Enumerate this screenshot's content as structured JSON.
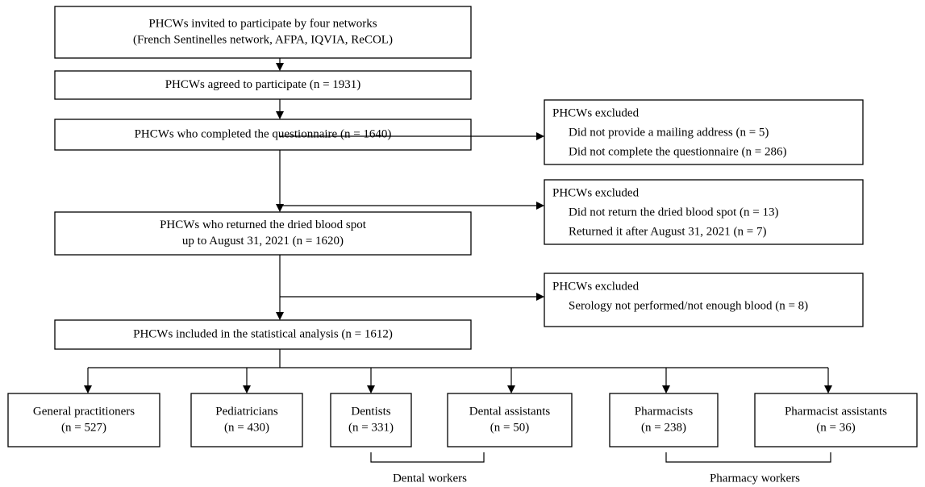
{
  "main_steps": [
    {
      "lines": [
        "PHCWs invited to participate by four networks",
        "(French Sentinelles network, AFPA, IQVIA, ReCOL)"
      ]
    },
    {
      "lines": [
        "PHCWs agreed to participate (n = 1931)"
      ]
    },
    {
      "lines": [
        "PHCWs who completed the questionnaire (n = 1640)"
      ]
    },
    {
      "lines": [
        "PHCWs who returned the dried blood spot",
        "up to August 31, 2021 (n = 1620)"
      ]
    },
    {
      "lines": [
        "PHCWs included in the statistical analysis (n = 1612)"
      ]
    }
  ],
  "exclusions": [
    {
      "title": "PHCWs excluded",
      "items": [
        "Did not provide a mailing address (n = 5)",
        "Did not complete the questionnaire (n = 286)"
      ]
    },
    {
      "title": "PHCWs excluded",
      "items": [
        "Did not return the dried blood spot (n = 13)",
        "Returned it after August 31, 2021 (n = 7)"
      ]
    },
    {
      "title": "PHCWs excluded",
      "items": [
        "Serology not performed/not enough blood (n = 8)"
      ]
    }
  ],
  "groups": [
    {
      "lines": [
        "General practitioners",
        "(n = 527)"
      ]
    },
    {
      "lines": [
        "Pediatricians",
        "(n = 430)"
      ]
    },
    {
      "lines": [
        "Dentists",
        "(n = 331)"
      ]
    },
    {
      "lines": [
        "Dental assistants",
        "(n = 50)"
      ]
    },
    {
      "lines": [
        "Pharmacists",
        "(n = 238)"
      ]
    },
    {
      "lines": [
        "Pharmacist assistants",
        "(n = 36)"
      ]
    }
  ],
  "brackets": [
    "Dental workers",
    "Pharmacy workers"
  ]
}
